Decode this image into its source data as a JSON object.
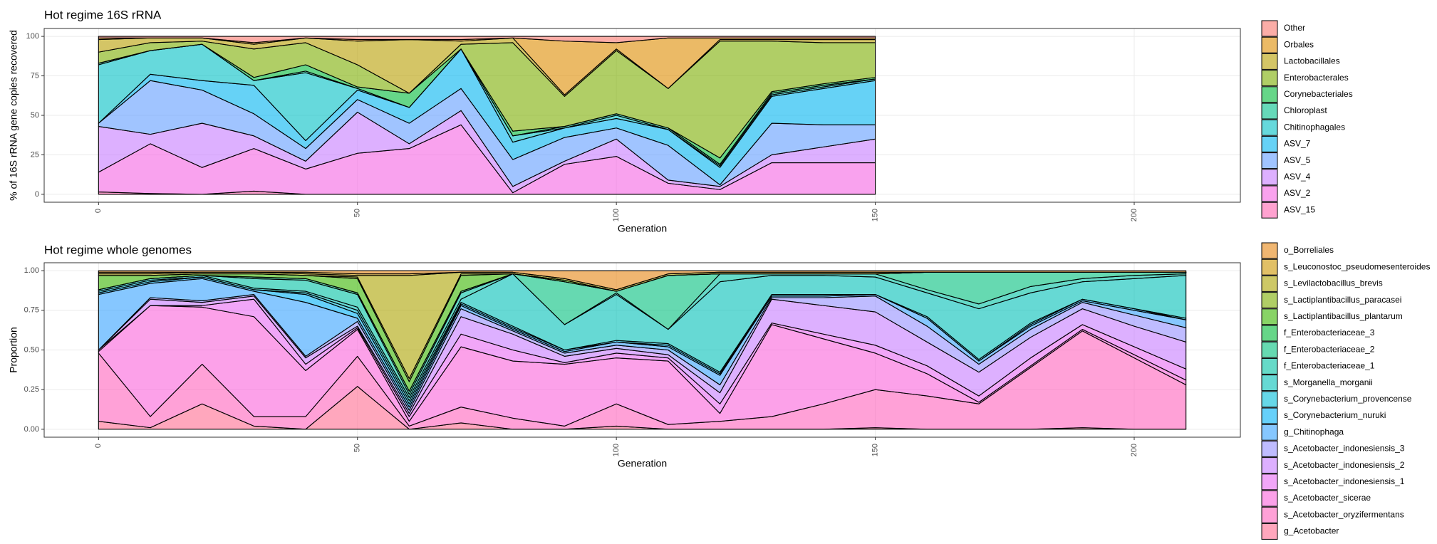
{
  "chart_data": [
    {
      "type": "area",
      "title": "Hot regime 16S rRNA",
      "x_label": "Generation",
      "y_label": "% of 16S rRNA gene copies recovered",
      "x": [
        0,
        10,
        20,
        30,
        40,
        50,
        60,
        70,
        80,
        90,
        100,
        110,
        120,
        130,
        140,
        150
      ],
      "xlim": [
        -10.5,
        220.5
      ],
      "xticks": [
        0,
        50,
        100,
        150,
        200
      ],
      "ylim": [
        -5,
        105
      ],
      "yticks": [
        0,
        25,
        50,
        75,
        100
      ],
      "grid": true,
      "legend": "right",
      "series": [
        {
          "name": "ASV_15",
          "color": "#FF64B0",
          "values": [
            1.5,
            0.5,
            0,
            2,
            0,
            0,
            0,
            0,
            0,
            0,
            0,
            0,
            0,
            0,
            0,
            0
          ]
        },
        {
          "name": "ASV_2",
          "color": "#F564E3",
          "values": [
            12.5,
            31.5,
            17,
            27,
            16,
            26,
            29,
            44,
            1,
            19,
            24,
            7,
            3,
            20,
            20,
            20
          ]
        },
        {
          "name": "ASV_4",
          "color": "#C77CFF",
          "values": [
            29,
            6,
            28,
            8,
            5,
            26,
            3,
            9,
            4,
            2,
            11,
            2,
            2,
            5,
            10,
            15
          ]
        },
        {
          "name": "ASV_5",
          "color": "#619CFF",
          "values": [
            2,
            34,
            21,
            14,
            8,
            8,
            13,
            14,
            17,
            15,
            7,
            22,
            1,
            20,
            14,
            9
          ]
        },
        {
          "name": "ASV_7",
          "color": "#00B4F0",
          "values": [
            0,
            4,
            6,
            18,
            5,
            6,
            10,
            25,
            11,
            6,
            6,
            10,
            11,
            17,
            23,
            28
          ]
        },
        {
          "name": "Chitinophagales",
          "color": "#00BFC4",
          "values": [
            37,
            15,
            23,
            3,
            43,
            1,
            0,
            0,
            4,
            0,
            2,
            0,
            1,
            1,
            1,
            1
          ]
        },
        {
          "name": "Chloroplast",
          "color": "#00C08B",
          "values": [
            1,
            0,
            0,
            0,
            1,
            0,
            0,
            0,
            0,
            1,
            1,
            1,
            1,
            1,
            1,
            0
          ]
        },
        {
          "name": "Corynebacteriales",
          "color": "#00BA38",
          "values": [
            0,
            0,
            0,
            2,
            4,
            1,
            9,
            0,
            3,
            0,
            0,
            0,
            4,
            1,
            1,
            1
          ]
        },
        {
          "name": "Enterobacterales",
          "color": "#7CAE00",
          "values": [
            7,
            5,
            2,
            18,
            14,
            14,
            0,
            3,
            56,
            19,
            40,
            25,
            74,
            32,
            26,
            22
          ]
        },
        {
          "name": "Lactobacillales",
          "color": "#B79F00",
          "values": [
            8,
            3,
            2,
            3,
            3,
            15,
            34,
            2,
            3,
            1,
            1,
            0,
            1,
            1,
            2,
            2
          ]
        },
        {
          "name": "Orbales",
          "color": "#DE8C00",
          "values": [
            1,
            0,
            0,
            1,
            0,
            1,
            0,
            1,
            0,
            34,
            4,
            32,
            1,
            1,
            1,
            1
          ]
        },
        {
          "name": "Other",
          "color": "#F8766D",
          "values": [
            1,
            1,
            1,
            4,
            1,
            2,
            2,
            2,
            1,
            3,
            4,
            1,
            1,
            1,
            1,
            1
          ]
        }
      ]
    },
    {
      "type": "area",
      "title": "Hot regime whole genomes",
      "x_label": "Generation",
      "y_label": "Proportion",
      "x": [
        0,
        10,
        20,
        30,
        40,
        50,
        60,
        70,
        80,
        90,
        100,
        110,
        120,
        130,
        140,
        150,
        160,
        170,
        180,
        190,
        200,
        210
      ],
      "xlim": [
        -10.5,
        220.5
      ],
      "xticks": [
        0,
        50,
        100,
        150,
        200
      ],
      "ylim": [
        -0.05,
        1.05
      ],
      "yticks": [
        {
          "value": 0,
          "label": "0.00"
        },
        {
          "value": 0.25,
          "label": "0.25"
        },
        {
          "value": 0.5,
          "label": "0.50"
        },
        {
          "value": 0.75,
          "label": "0.75"
        },
        {
          "value": 1,
          "label": "1.00"
        }
      ],
      "grid": true,
      "legend": "right",
      "series": [
        {
          "name": "g_Acetobacter",
          "color": "#FF6C91",
          "values": [
            0.05,
            0.01,
            0.16,
            0.02,
            0,
            0.27,
            0,
            0.04,
            0,
            0,
            0.02,
            0,
            0,
            0,
            0,
            0.01,
            0,
            0,
            0,
            0.01,
            0,
            0
          ]
        },
        {
          "name": "s_Acetobacter_oryzifermentans",
          "color": "#FF62BC",
          "values": [
            0.43,
            0.07,
            0.25,
            0.06,
            0.08,
            0.19,
            0.02,
            0.1,
            0.07,
            0.02,
            0.14,
            0.03,
            0.05,
            0.08,
            0.16,
            0.24,
            0.21,
            0.16,
            0.39,
            0.61,
            0.45,
            0.28
          ]
        },
        {
          "name": "s_Acetobacter_sicerae",
          "color": "#FA62DB",
          "values": [
            0.01,
            0.7,
            0.36,
            0.63,
            0.29,
            0.17,
            0.03,
            0.38,
            0.36,
            0.39,
            0.29,
            0.4,
            0.05,
            0.58,
            0.41,
            0.23,
            0.14,
            0.01,
            0.01,
            0.01,
            0.02,
            0.03
          ]
        },
        {
          "name": "s_Acetobacter_indonesiensis_1",
          "color": "#E76BF3",
          "values": [
            0.01,
            0,
            0.01,
            0.11,
            0.04,
            0.01,
            0.03,
            0.08,
            0.07,
            0.01,
            0.03,
            0.02,
            0.06,
            0.01,
            0.03,
            0.05,
            0.05,
            0.04,
            0.05,
            0.03,
            0.05,
            0.07
          ]
        },
        {
          "name": "s_Acetobacter_indonesiensis_2",
          "color": "#C77CFF",
          "values": [
            0,
            0.04,
            0.02,
            0.02,
            0.04,
            0.01,
            0.02,
            0.11,
            0.1,
            0.04,
            0.03,
            0.02,
            0.07,
            0.15,
            0.18,
            0.21,
            0.15,
            0.15,
            0.13,
            0.1,
            0.13,
            0.17
          ]
        },
        {
          "name": "s_Acetobacter_indonesiensis_3",
          "color": "#9590FF",
          "values": [
            0,
            0.01,
            0.01,
            0.01,
            0.01,
            0.03,
            0.02,
            0.05,
            0.02,
            0.02,
            0.02,
            0.03,
            0.05,
            0.01,
            0.05,
            0.1,
            0.1,
            0.05,
            0.05,
            0.04,
            0.07,
            0.09
          ]
        },
        {
          "name": "g_Chitinophaga",
          "color": "#35A2FF",
          "values": [
            0.35,
            0.09,
            0.14,
            0.02,
            0.34,
            0.02,
            0.02,
            0.02,
            0.01,
            0.01,
            0.02,
            0.02,
            0.06,
            0.01,
            0.01,
            0.01,
            0.05,
            0.02,
            0.02,
            0.01,
            0.03,
            0.05
          ]
        },
        {
          "name": "s_Corynebacterium_nuruki",
          "color": "#00B0F6",
          "values": [
            0.01,
            0.01,
            0.01,
            0.01,
            0.05,
            0.03,
            0.02,
            0.01,
            0.01,
            0.01,
            0,
            0.01,
            0.01,
            0,
            0,
            0,
            0,
            0,
            0.01,
            0.01,
            0.01,
            0
          ]
        },
        {
          "name": "s_Corynebacterium_provencense",
          "color": "#00BCD8",
          "values": [
            0.01,
            0.01,
            0,
            0,
            0.01,
            0.02,
            0.02,
            0.01,
            0.01,
            0,
            0.01,
            0.01,
            0.01,
            0.01,
            0.01,
            0,
            0.01,
            0.01,
            0.01,
            0,
            0,
            0.01
          ]
        },
        {
          "name": "s_Morganella_morganii",
          "color": "#00C0B8",
          "values": [
            0.01,
            0.01,
            0.01,
            0.01,
            0.01,
            0.02,
            0.02,
            0.02,
            0.33,
            0.16,
            0.29,
            0.09,
            0.57,
            0.12,
            0.12,
            0.11,
            0.15,
            0.32,
            0.19,
            0.11,
            0.19,
            0.27
          ]
        },
        {
          "name": "f_Enterobacteriaceae_1",
          "color": "#00C1A3",
          "values": [
            0,
            0,
            0,
            0.06,
            0.07,
            0.08,
            0.02,
            0.04,
            0,
            0,
            0.01,
            0,
            0.05,
            0.01,
            0.01,
            0.02,
            0.02,
            0.03,
            0.04,
            0.02,
            0.02,
            0.01
          ]
        },
        {
          "name": "f_Enterobacteriaceae_2",
          "color": "#00BF7D",
          "values": [
            0,
            0,
            0,
            0.01,
            0.01,
            0.01,
            0.02,
            0.01,
            0,
            0.27,
            0.01,
            0.34,
            0,
            0,
            0,
            0,
            0.11,
            0.2,
            0.09,
            0.04,
            0.02,
            0.01
          ]
        },
        {
          "name": "f_Enterobacteriaceae_3",
          "color": "#00BA38",
          "values": [
            0,
            0,
            0,
            0,
            0,
            0,
            0,
            0,
            0,
            0,
            0,
            0,
            0,
            0,
            0,
            0,
            0,
            0,
            0,
            0,
            0,
            0
          ]
        },
        {
          "name": "s_Lactiplantibacillus_plantarum",
          "color": "#39B600",
          "values": [
            0.09,
            0.02,
            0.01,
            0.02,
            0.02,
            0.09,
            0.06,
            0.1,
            0,
            0.01,
            0,
            0,
            0,
            0,
            0,
            0,
            0,
            0,
            0,
            0,
            0,
            0
          ]
        },
        {
          "name": "s_Lactiplantibacillus_paracasei",
          "color": "#7CAE00",
          "values": [
            0,
            0,
            0,
            0,
            0,
            0.01,
            0.02,
            0.01,
            0,
            0,
            0,
            0,
            0,
            0,
            0,
            0,
            0,
            0,
            0,
            0,
            0,
            0
          ]
        },
        {
          "name": "s_Levilactobacillus_brevis",
          "color": "#ABA300",
          "values": [
            0.01,
            0.01,
            0.01,
            0.01,
            0.01,
            0.01,
            0.65,
            0.01,
            0.01,
            0.01,
            0.01,
            0.01,
            0.01,
            0.01,
            0.01,
            0.01,
            0,
            0,
            0,
            0,
            0,
            0
          ]
        },
        {
          "name": "s_Leuconostoc_pseudomesenteroides",
          "color": "#CD9600",
          "values": [
            0.01,
            0.01,
            0,
            0,
            0.01,
            0.01,
            0.01,
            0,
            0,
            0,
            0,
            0,
            0,
            0,
            0,
            0,
            0,
            0,
            0,
            0,
            0,
            0
          ]
        },
        {
          "name": "o_Borreliales",
          "color": "#E68613",
          "values": [
            0.01,
            0.01,
            0.01,
            0.01,
            0.01,
            0.02,
            0.02,
            0.01,
            0.01,
            0.05,
            0.12,
            0.02,
            0.01,
            0.01,
            0.01,
            0.01,
            0.01,
            0.01,
            0.01,
            0.01,
            0.01,
            0.01
          ]
        }
      ]
    }
  ]
}
